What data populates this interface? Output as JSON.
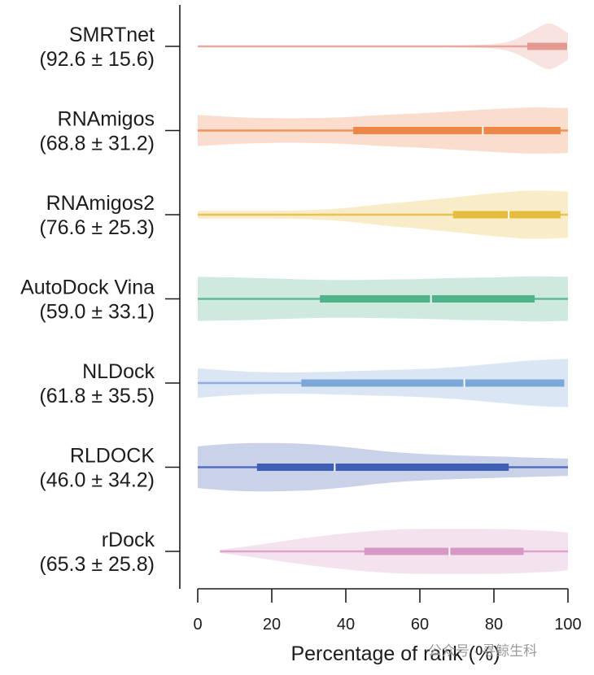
{
  "chart_data": {
    "type": "violin",
    "orientation": "horizontal",
    "xlabel": "Percentage of rank (%)",
    "xlim": [
      0,
      100
    ],
    "xticks": [
      "0",
      "20",
      "40",
      "60",
      "80",
      "100"
    ],
    "series": [
      {
        "name": "SMRTnet",
        "stat": "(92.6 ± 15.6)",
        "color": "#e59a91",
        "whisker": [
          0,
          100
        ],
        "quartiles": [
          89,
          100
        ],
        "median": 100,
        "density": [
          [
            0,
            0.004
          ],
          [
            20,
            0.005
          ],
          [
            40,
            0.006
          ],
          [
            60,
            0.01
          ],
          [
            70,
            0.02
          ],
          [
            80,
            0.09
          ],
          [
            85,
            0.22
          ],
          [
            90,
            0.55
          ],
          [
            95,
            0.85
          ],
          [
            100,
            0.5
          ]
        ]
      },
      {
        "name": "RNAmigos",
        "stat": "(68.8 ± 31.2)",
        "color": "#ee8648",
        "whisker": [
          0,
          100
        ],
        "quartiles": [
          42,
          98
        ],
        "median": 77,
        "density": [
          [
            0,
            0.58
          ],
          [
            10,
            0.5
          ],
          [
            20,
            0.46
          ],
          [
            30,
            0.46
          ],
          [
            40,
            0.5
          ],
          [
            50,
            0.58
          ],
          [
            60,
            0.64
          ],
          [
            70,
            0.72
          ],
          [
            80,
            0.8
          ],
          [
            90,
            0.86
          ],
          [
            100,
            0.84
          ]
        ]
      },
      {
        "name": "RNAmigos2",
        "stat": "(76.6 ± 25.3)",
        "color": "#e6bc3c",
        "whisker": [
          0,
          100
        ],
        "quartiles": [
          69,
          98
        ],
        "median": 84,
        "density": [
          [
            0,
            0.15
          ],
          [
            10,
            0.15
          ],
          [
            20,
            0.15
          ],
          [
            30,
            0.17
          ],
          [
            40,
            0.25
          ],
          [
            50,
            0.4
          ],
          [
            60,
            0.52
          ],
          [
            70,
            0.66
          ],
          [
            80,
            0.8
          ],
          [
            90,
            0.9
          ],
          [
            100,
            0.86
          ]
        ]
      },
      {
        "name": "AutoDock Vina",
        "stat": "(59.0 ± 33.1)",
        "color": "#4fb28a",
        "whisker": [
          0,
          100
        ],
        "quartiles": [
          33,
          91
        ],
        "median": 63,
        "density": [
          [
            0,
            0.82
          ],
          [
            10,
            0.8
          ],
          [
            20,
            0.76
          ],
          [
            30,
            0.72
          ],
          [
            40,
            0.7
          ],
          [
            50,
            0.72
          ],
          [
            60,
            0.74
          ],
          [
            70,
            0.78
          ],
          [
            80,
            0.8
          ],
          [
            90,
            0.84
          ],
          [
            100,
            0.82
          ]
        ]
      },
      {
        "name": "NLDock",
        "stat": "(61.8 ± 35.5)",
        "color": "#7da7d9",
        "whisker": [
          0,
          99
        ],
        "quartiles": [
          28,
          99
        ],
        "median": 72,
        "density": [
          [
            0,
            0.55
          ],
          [
            10,
            0.45
          ],
          [
            20,
            0.4
          ],
          [
            30,
            0.4
          ],
          [
            40,
            0.44
          ],
          [
            50,
            0.48
          ],
          [
            60,
            0.52
          ],
          [
            70,
            0.6
          ],
          [
            80,
            0.72
          ],
          [
            90,
            0.84
          ],
          [
            100,
            0.9
          ]
        ]
      },
      {
        "name": "RLDOCK",
        "stat": "(46.0 ± 34.2)",
        "color": "#3f5fb4",
        "whisker": [
          0,
          100
        ],
        "quartiles": [
          16,
          84
        ],
        "median": 37,
        "density": [
          [
            0,
            0.78
          ],
          [
            10,
            0.88
          ],
          [
            20,
            0.9
          ],
          [
            30,
            0.86
          ],
          [
            40,
            0.75
          ],
          [
            50,
            0.6
          ],
          [
            60,
            0.5
          ],
          [
            70,
            0.44
          ],
          [
            80,
            0.4
          ],
          [
            90,
            0.36
          ],
          [
            100,
            0.32
          ]
        ]
      },
      {
        "name": "rDock",
        "stat": "(65.3 ± 25.8)",
        "color": "#d898c6",
        "whisker": [
          6,
          100
        ],
        "quartiles": [
          45,
          88
        ],
        "median": 68,
        "density": [
          [
            6,
            0.06
          ],
          [
            15,
            0.22
          ],
          [
            25,
            0.42
          ],
          [
            35,
            0.6
          ],
          [
            45,
            0.74
          ],
          [
            55,
            0.82
          ],
          [
            65,
            0.84
          ],
          [
            75,
            0.84
          ],
          [
            85,
            0.82
          ],
          [
            95,
            0.76
          ],
          [
            100,
            0.7
          ]
        ]
      }
    ]
  },
  "watermark": "公众号 · 寻鲸生科"
}
